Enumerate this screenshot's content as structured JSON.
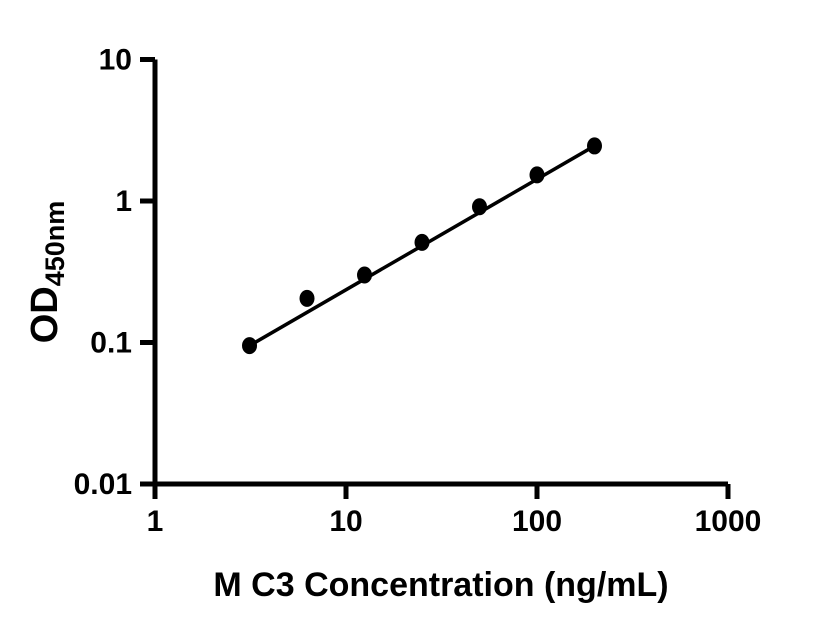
{
  "figure": {
    "background_color": "#ffffff"
  },
  "chart_data": {
    "type": "scatter",
    "title": "",
    "xlabel": "M C3 Concentration (ng/mL)",
    "ylabel": "OD",
    "ylabel_subscript": "450nm",
    "x_scale": "log",
    "y_scale": "log",
    "xlim": [
      1,
      1000
    ],
    "ylim": [
      0.01,
      10
    ],
    "x_ticks": [
      1,
      10,
      100,
      1000
    ],
    "x_tick_labels": [
      "1",
      "10",
      "100",
      "1000"
    ],
    "y_ticks": [
      10,
      1,
      0.1,
      0.01
    ],
    "y_tick_labels": [
      "10",
      "1",
      "0.1",
      "0.01"
    ],
    "grid": false,
    "legend": false,
    "series": [
      {
        "name": "standard-curve-points",
        "marker": "circle",
        "color": "#000000",
        "x": [
          3.125,
          6.25,
          12.5,
          25,
          50,
          100,
          200
        ],
        "y": [
          0.095,
          0.205,
          0.3,
          0.51,
          0.91,
          1.53,
          2.45
        ]
      }
    ],
    "fit_line": {
      "name": "linear-fit",
      "color": "#000000",
      "x1": 3.125,
      "y1": 0.095,
      "x2": 200,
      "y2": 2.45
    },
    "axis_color": "#000000"
  }
}
